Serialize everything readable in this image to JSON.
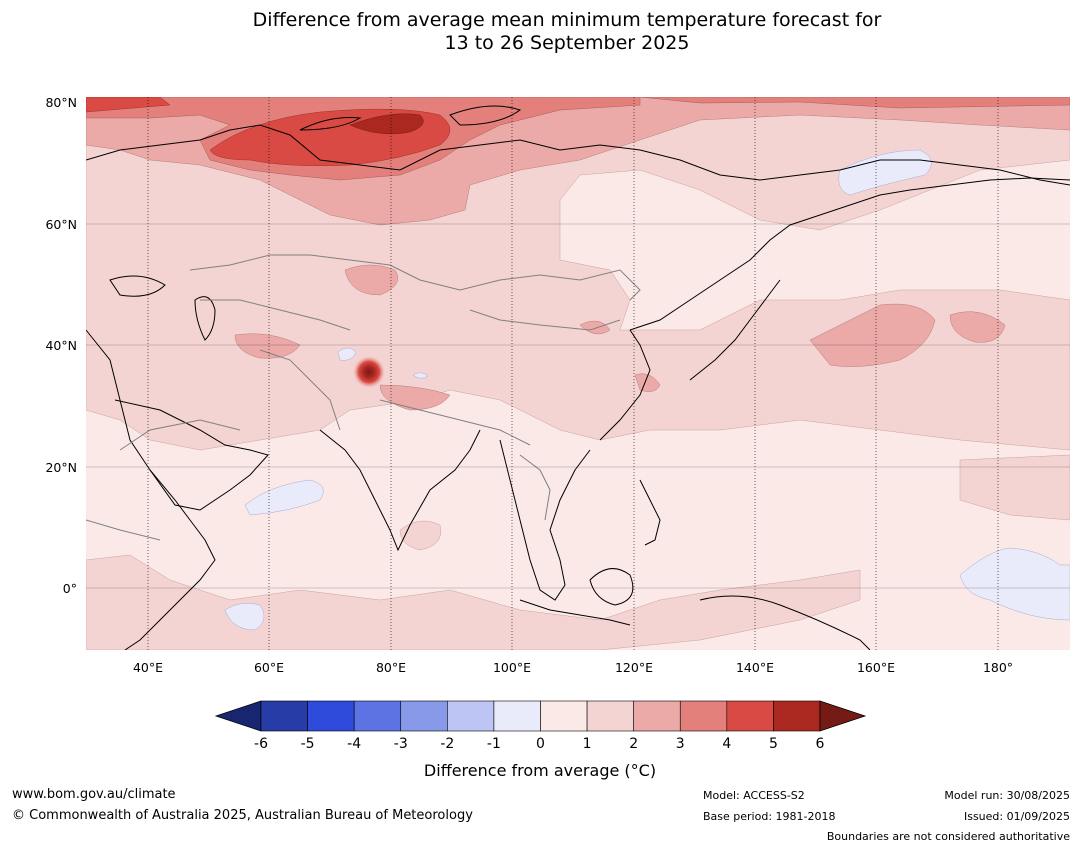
{
  "title": {
    "line1": "Difference from average mean minimum temperature forecast for",
    "line2": "13 to 26 September 2025"
  },
  "map": {
    "lat_labels": [
      "80°N",
      "60°N",
      "40°N",
      "20°N",
      "0°"
    ],
    "lon_labels": [
      "40°E",
      "60°E",
      "80°E",
      "100°E",
      "120°E",
      "140°E",
      "160°E",
      "180°"
    ],
    "coastline_color": "#000000",
    "border_color": "#808080"
  },
  "colorbar": {
    "ticks": [
      "-6",
      "-5",
      "-4",
      "-3",
      "-2",
      "-1",
      "0",
      "1",
      "2",
      "3",
      "4",
      "5",
      "6"
    ],
    "colors": [
      "#18266f",
      "#283ca7",
      "#2e4bdc",
      "#5d73e3",
      "#8899ea",
      "#bcc5f3",
      "#e9ebfa",
      "#fbe9e8",
      "#f4d4d2",
      "#ebaaa7",
      "#e4807c",
      "#d84a43",
      "#ab2820",
      "#751b16"
    ],
    "label": "Difference from average ($^\\circ$C)",
    "label_display": "Difference from average (°C)"
  },
  "footer": {
    "website": "www.bom.gov.au/climate",
    "copyright": "© Commonwealth of Australia 2025, Australian Bureau of Meteorology",
    "model": "Model: ACCESS-S2",
    "base_period": "Base period: 1981-2018",
    "model_run": "Model run: 30/08/2025",
    "issued": "Issued: 01/09/2025",
    "disclaimer": "Boundaries are not considered authoritative"
  }
}
